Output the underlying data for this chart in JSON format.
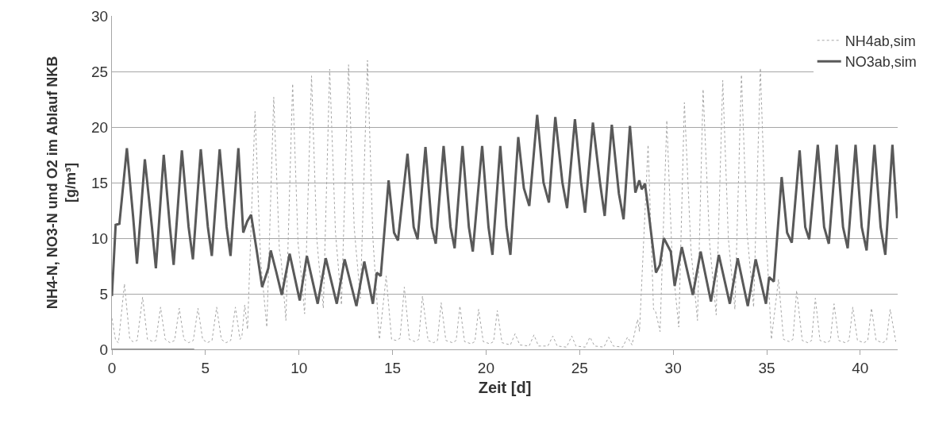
{
  "chart_data": {
    "type": "line",
    "xlabel": "Zeit [d]",
    "ylabel": "NH4-N, NO3-N und O2 im Ablauf NKB\n[g/m³]",
    "xlim": [
      0,
      42
    ],
    "xticks": [
      0,
      5,
      10,
      15,
      20,
      25,
      30,
      35,
      40
    ],
    "ylim": [
      0,
      30
    ],
    "yticks": [
      0,
      5,
      10,
      15,
      20,
      25,
      30
    ],
    "grid": "y",
    "legend": "top right",
    "series": [
      {
        "name": "NH4ab,sim",
        "color": "#a6a6a6",
        "line_style": "dotted",
        "x": [
          0,
          0.2,
          0.35,
          0.67,
          0.95,
          1.1,
          1.35,
          1.64,
          1.9,
          2.2,
          2.35,
          2.6,
          2.85,
          3.1,
          3.35,
          3.6,
          3.85,
          4.1,
          4.35,
          4.6,
          4.85,
          5.1,
          5.35,
          5.6,
          5.85,
          6.1,
          6.35,
          6.6,
          6.85,
          6.95,
          7.1,
          7.25,
          7.65,
          7.95,
          8.28,
          8.65,
          8.95,
          9.05,
          9.3,
          9.66,
          9.95,
          10.05,
          10.3,
          10.67,
          10.95,
          11.05,
          11.3,
          11.64,
          11.95,
          12.05,
          12.27,
          12.65,
          12.95,
          13.05,
          13.28,
          13.66,
          13.95,
          14.3,
          14.66,
          14.95,
          15.2,
          15.4,
          15.63,
          15.9,
          16.2,
          16.4,
          16.6,
          16.9,
          17.2,
          17.4,
          17.6,
          17.85,
          18.2,
          18.4,
          18.6,
          18.85,
          19.2,
          19.4,
          19.6,
          19.85,
          20.2,
          20.4,
          20.6,
          20.85,
          21.3,
          21.55,
          21.8,
          22.3,
          22.56,
          22.8,
          23.3,
          23.57,
          23.8,
          24.3,
          24.58,
          24.8,
          25.3,
          25.55,
          25.8,
          26.3,
          26.55,
          26.8,
          27.3,
          27.56,
          27.8,
          28.1,
          28.2,
          28.66,
          28.95,
          29.05,
          29.3,
          29.66,
          29.95,
          30.3,
          30.6,
          30.95,
          31.3,
          31.6,
          31.95,
          32.3,
          32.65,
          32.95,
          33.3,
          33.65,
          33.95,
          34.3,
          34.66,
          34.95,
          35.25,
          35.63,
          35.9,
          36.2,
          36.4,
          36.6,
          36.9,
          37.2,
          37.4,
          37.6,
          37.85,
          38.2,
          38.4,
          38.6,
          38.85,
          39.2,
          39.4,
          39.6,
          39.85,
          40.2,
          40.4,
          40.6,
          40.85,
          41.2,
          41.4,
          41.6,
          41.9
        ],
        "values": [
          2.8,
          0.8,
          0.6,
          5.9,
          1.0,
          0.7,
          0.8,
          4.7,
          0.9,
          0.7,
          0.8,
          3.8,
          0.9,
          0.6,
          0.8,
          3.7,
          0.9,
          0.6,
          0.8,
          3.7,
          0.9,
          0.6,
          0.8,
          3.8,
          0.9,
          0.6,
          0.8,
          3.8,
          0.9,
          1.2,
          4.0,
          1.8,
          21.4,
          8,
          2.0,
          22.7,
          9,
          8,
          2.6,
          23.9,
          9.5,
          8,
          3.2,
          24.6,
          10,
          8,
          3.7,
          25.2,
          10.5,
          8.5,
          4.0,
          25.6,
          11,
          9,
          4.6,
          26.0,
          10,
          0.9,
          6.6,
          0.9,
          0.8,
          1.0,
          5.6,
          0.9,
          0.7,
          0.9,
          4.8,
          0.8,
          0.6,
          0.8,
          4.2,
          0.8,
          0.6,
          0.8,
          3.9,
          0.7,
          0.5,
          0.7,
          3.6,
          0.7,
          0.5,
          0.7,
          3.5,
          0.6,
          0.4,
          1.4,
          0.4,
          0.3,
          1.3,
          0.3,
          0.3,
          1.2,
          0.3,
          0.2,
          1.2,
          0.3,
          0.2,
          1.1,
          0.3,
          0.2,
          1.1,
          0.3,
          0.2,
          1.1,
          0.4,
          2.7,
          1.6,
          18.4,
          3.6,
          3.5,
          1.6,
          20.6,
          8,
          2.0,
          22.2,
          9,
          2.6,
          23.4,
          9.5,
          3.1,
          24.2,
          10,
          3.6,
          24.7,
          10.5,
          3.8,
          25.3,
          11,
          0.9,
          6.3,
          0.9,
          0.7,
          0.9,
          5.3,
          0.8,
          0.6,
          0.8,
          4.6,
          0.8,
          0.6,
          0.8,
          4.1,
          0.8,
          0.6,
          0.8,
          3.8,
          0.8,
          0.6,
          0.8,
          3.7,
          0.8,
          0.6,
          0.8,
          3.6,
          0.7
        ]
      },
      {
        "name": "NO3ab,sim",
        "color": "#595959",
        "line_style": "solid",
        "x": [
          0,
          0.2,
          0.4,
          0.8,
          1.13,
          1.34,
          1.76,
          2.14,
          2.35,
          2.77,
          3.1,
          3.3,
          3.74,
          4.1,
          4.33,
          4.75,
          5.13,
          5.34,
          5.76,
          6.13,
          6.34,
          6.76,
          7.02,
          7.23,
          7.44,
          7.73,
          8.03,
          8.36,
          8.49,
          8.78,
          9.08,
          9.5,
          10.04,
          10.42,
          11.0,
          11.43,
          12.02,
          12.44,
          13.07,
          13.49,
          13.95,
          14.16,
          14.37,
          14.79,
          15.08,
          15.29,
          15.8,
          16.13,
          16.34,
          16.76,
          17.1,
          17.31,
          17.73,
          18.1,
          18.32,
          18.74,
          19.08,
          19.29,
          19.79,
          20.13,
          20.34,
          20.76,
          21.09,
          21.3,
          21.72,
          22.02,
          22.31,
          22.73,
          23.07,
          23.36,
          23.7,
          24.08,
          24.33,
          24.75,
          25.08,
          25.29,
          25.71,
          26.09,
          26.34,
          26.72,
          27.1,
          27.35,
          27.69,
          27.98,
          28.19,
          28.32,
          28.49,
          28.61,
          29.08,
          29.29,
          29.5,
          29.87,
          30.08,
          30.46,
          31.05,
          31.47,
          32.02,
          32.44,
          33.03,
          33.45,
          33.99,
          34.41,
          34.96,
          35.13,
          35.38,
          35.8,
          36.09,
          36.34,
          36.76,
          37.06,
          37.27,
          37.73,
          38.07,
          38.32,
          38.74,
          39.08,
          39.33,
          39.75,
          40.08,
          40.34,
          40.76,
          41.09,
          41.34,
          41.72,
          41.97
        ],
        "values": [
          4.8,
          11.2,
          11.3,
          18.1,
          12,
          7.7,
          17.1,
          11,
          7.3,
          17.5,
          11,
          7.6,
          17.9,
          11,
          8.1,
          18.0,
          11,
          8.4,
          18.0,
          11,
          8.4,
          18.1,
          10.5,
          11.5,
          12.1,
          9,
          5.6,
          7.3,
          8.9,
          7,
          4.9,
          8.6,
          4.4,
          8.4,
          4.1,
          8.2,
          4.1,
          8.1,
          3.9,
          7.9,
          4.1,
          6.9,
          6.6,
          15.2,
          10.5,
          9.8,
          17.6,
          11,
          9.9,
          18.2,
          11,
          9.5,
          18.3,
          11,
          9.1,
          18.3,
          11,
          8.8,
          18.3,
          11,
          8.5,
          18.3,
          11,
          8.5,
          19.1,
          14.5,
          12.9,
          21.1,
          15,
          13.2,
          20.9,
          15,
          12.7,
          20.7,
          15,
          12.3,
          20.4,
          15,
          12.0,
          20.2,
          14,
          11.7,
          20.1,
          14.1,
          15.2,
          14.4,
          14.9,
          13.4,
          6.9,
          7.6,
          10.0,
          8.8,
          5.7,
          9.2,
          4.9,
          8.8,
          4.3,
          8.5,
          4.1,
          8.2,
          3.9,
          8.1,
          4.1,
          6.5,
          6.1,
          15.5,
          10.5,
          9.6,
          17.9,
          11,
          9.9,
          18.4,
          11,
          9.5,
          18.4,
          11,
          9.1,
          18.4,
          11,
          8.9,
          18.4,
          11,
          8.5,
          18.4,
          11.8
        ]
      },
      {
        "color": "#8c8c8c",
        "line_style": "solid",
        "x": [
          0,
          4.4
        ],
        "values": [
          0,
          0
        ]
      }
    ]
  }
}
